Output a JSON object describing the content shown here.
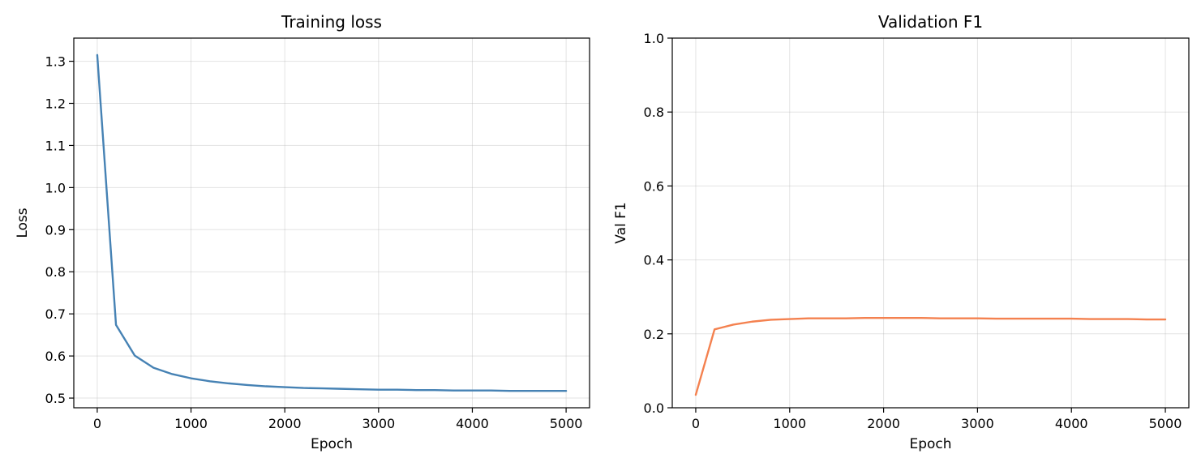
{
  "chart_data": [
    {
      "type": "line",
      "title": "Training loss",
      "xlabel": "Epoch",
      "ylabel": "Loss",
      "xlim": [
        -250,
        5250
      ],
      "ylim": [
        0.477,
        1.355
      ],
      "xticks": [
        0,
        1000,
        2000,
        3000,
        4000,
        5000
      ],
      "xtick_labels": [
        "0",
        "1000",
        "2000",
        "3000",
        "4000",
        "5000"
      ],
      "yticks": [
        0.5,
        0.6,
        0.7,
        0.8,
        0.9,
        1.0,
        1.1,
        1.2,
        1.3
      ],
      "ytick_labels": [
        "0.5",
        "0.6",
        "0.7",
        "0.8",
        "0.9",
        "1.0",
        "1.1",
        "1.2",
        "1.3"
      ],
      "grid": true,
      "series": [
        {
          "color": "#4682b4",
          "x": [
            0,
            200,
            400,
            600,
            800,
            1000,
            1200,
            1400,
            1600,
            1800,
            2000,
            2200,
            2400,
            2600,
            2800,
            3000,
            3200,
            3400,
            3600,
            3800,
            4000,
            4200,
            4400,
            4600,
            4800,
            5000
          ],
          "y": [
            1.315,
            0.674,
            0.601,
            0.572,
            0.557,
            0.547,
            0.54,
            0.535,
            0.531,
            0.528,
            0.526,
            0.524,
            0.523,
            0.522,
            0.521,
            0.52,
            0.52,
            0.519,
            0.519,
            0.518,
            0.518,
            0.518,
            0.517,
            0.517,
            0.517,
            0.517
          ]
        }
      ]
    },
    {
      "type": "line",
      "title": "Validation F1",
      "xlabel": "Epoch",
      "ylabel": "Val F1",
      "xlim": [
        -250,
        5250
      ],
      "ylim": [
        0.0,
        1.0
      ],
      "xticks": [
        0,
        1000,
        2000,
        3000,
        4000,
        5000
      ],
      "xtick_labels": [
        "0",
        "1000",
        "2000",
        "3000",
        "4000",
        "5000"
      ],
      "yticks": [
        0.0,
        0.2,
        0.4,
        0.6,
        0.8,
        1.0
      ],
      "ytick_labels": [
        "0.0",
        "0.2",
        "0.4",
        "0.6",
        "0.8",
        "1.0"
      ],
      "grid": true,
      "series": [
        {
          "color": "#f4814f",
          "x": [
            0,
            200,
            400,
            600,
            800,
            1000,
            1200,
            1400,
            1600,
            1800,
            2000,
            2200,
            2400,
            2600,
            2800,
            3000,
            3200,
            3400,
            3600,
            3800,
            4000,
            4200,
            4400,
            4600,
            4800,
            5000
          ],
          "y": [
            0.035,
            0.212,
            0.225,
            0.233,
            0.238,
            0.24,
            0.242,
            0.242,
            0.242,
            0.243,
            0.243,
            0.243,
            0.243,
            0.242,
            0.242,
            0.242,
            0.241,
            0.241,
            0.241,
            0.241,
            0.241,
            0.24,
            0.24,
            0.24,
            0.239,
            0.239
          ]
        }
      ]
    }
  ]
}
